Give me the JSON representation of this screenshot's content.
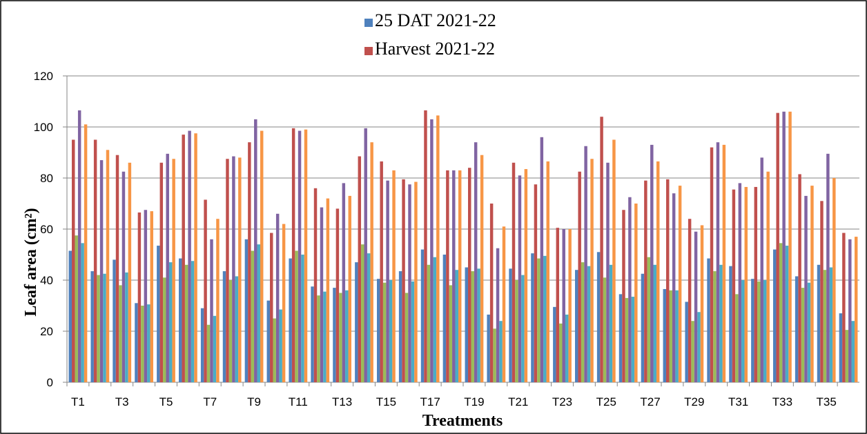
{
  "chart_data": {
    "type": "bar",
    "categories": [
      "T1",
      null,
      "T3",
      null,
      "T5",
      null,
      "T7",
      null,
      "T9",
      null,
      "T11",
      null,
      "T13",
      null,
      "T15",
      null,
      "T17",
      null,
      "T19",
      null,
      "T21",
      null,
      "T23",
      null,
      "T25",
      null,
      "T27",
      null,
      "T29",
      null,
      "T31",
      null,
      "T33",
      null,
      "T35",
      null
    ],
    "series": [
      {
        "name": "25 DAT 2021-22",
        "color": "#4f81bd",
        "values": [
          51.5,
          43.5,
          48,
          31,
          53.5,
          48.5,
          29,
          43.5,
          56,
          32,
          48.5,
          37.5,
          37,
          47,
          40.5,
          43.5,
          52,
          50,
          45,
          26.5,
          44.5,
          50.5,
          29.5,
          44,
          51,
          34.5,
          42.5,
          36.5,
          31.5,
          48.5,
          45.5,
          40.5,
          52,
          41.5,
          46,
          27
        ]
      },
      {
        "name": "Harvest 2021-22",
        "color": "#c0504d",
        "values": [
          95,
          95,
          89,
          66.5,
          86,
          97,
          71.5,
          87.5,
          94,
          58.5,
          99.5,
          76,
          68,
          88.5,
          86.5,
          79.5,
          106.5,
          83,
          84,
          70,
          86,
          77.5,
          60.5,
          82.5,
          104,
          67.5,
          79,
          79.5,
          64,
          92,
          75.5,
          76.5,
          105.5,
          81.5,
          71,
          58.5
        ]
      },
      {
        "color": "#9bbb59",
        "values": [
          57.5,
          42,
          38,
          30,
          41,
          46,
          22.5,
          40,
          51.5,
          25,
          51.5,
          34,
          35,
          54,
          39,
          35,
          46,
          38,
          43.5,
          21,
          40,
          48.5,
          23,
          47,
          41,
          33,
          49,
          36,
          24,
          43.5,
          34.5,
          39.5,
          54.5,
          37,
          44,
          20.5
        ]
      },
      {
        "color": "#8064a2",
        "values": [
          106.5,
          87,
          82.5,
          67.5,
          89.5,
          98.5,
          56,
          88.5,
          103,
          66,
          98.5,
          68.5,
          78,
          99.5,
          79,
          77.5,
          103,
          83,
          94,
          52.5,
          81,
          96,
          60,
          92.5,
          86,
          72.5,
          93,
          74,
          59,
          94,
          78,
          88,
          106,
          73,
          89.5,
          56
        ]
      },
      {
        "color": "#4bacc6",
        "values": [
          54.5,
          42.5,
          43,
          30.5,
          47,
          47.5,
          26,
          41.5,
          54,
          28.5,
          50,
          35.5,
          36,
          50.5,
          40,
          39.5,
          49,
          44,
          44.5,
          24,
          42,
          49.5,
          26.5,
          45.5,
          46,
          33.5,
          46,
          36,
          27.5,
          46,
          40,
          40,
          53.5,
          39,
          45,
          24
        ]
      },
      {
        "color": "#f79646",
        "values": [
          101,
          91,
          86,
          67,
          87.5,
          97.5,
          64,
          88,
          98.5,
          62,
          99,
          72,
          73,
          94,
          83,
          78.5,
          104.5,
          83,
          89,
          61,
          83.5,
          86.5,
          60,
          87.5,
          95,
          70,
          86.5,
          77,
          61.5,
          93,
          76.5,
          82.5,
          106,
          77,
          80,
          57
        ]
      }
    ],
    "ylim": [
      0,
      120
    ],
    "yticks": [
      0,
      20,
      40,
      60,
      80,
      100,
      120
    ],
    "grid": true,
    "x_label": "Treatments",
    "y_label": "Leaf area (cm²)",
    "legend": "top"
  }
}
